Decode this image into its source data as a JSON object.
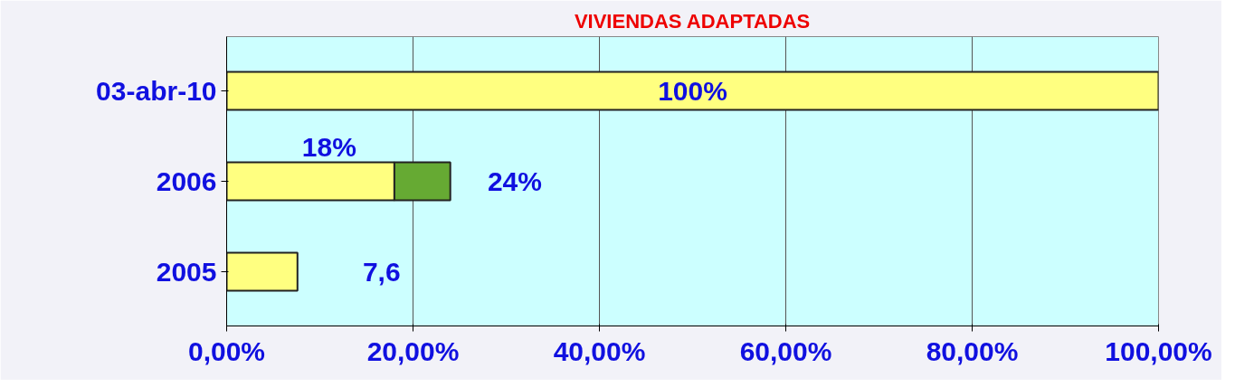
{
  "chart_data": {
    "type": "bar",
    "orientation": "horizontal",
    "stacked": true,
    "title": "VIVIENDAS ADAPTADAS",
    "categories": [
      "03-abr-10",
      "2006",
      "2005"
    ],
    "series": [
      {
        "color": "#ffff80",
        "values": [
          100,
          18,
          7.6
        ],
        "value_labels": [
          "100%",
          "18%",
          "7,6"
        ]
      },
      {
        "color": "#66aa33",
        "values": [
          null,
          6,
          null
        ]
      }
    ],
    "totals": [
      null,
      "24%",
      null
    ],
    "xlim": [
      0,
      100
    ],
    "xticks": [
      {
        "value": 0,
        "label": "0,00%"
      },
      {
        "value": 20,
        "label": "20,00%"
      },
      {
        "value": 40,
        "label": "40,00%"
      },
      {
        "value": 60,
        "label": "60,00%"
      },
      {
        "value": 80,
        "label": "80,00%"
      },
      {
        "value": 100,
        "label": "100,00%"
      }
    ],
    "grid": "x"
  }
}
